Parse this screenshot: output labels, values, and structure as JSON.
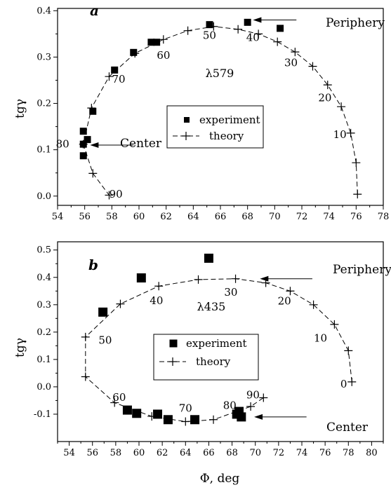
{
  "figure": {
    "xlabel": "Φ, deg"
  },
  "chart_data": [
    {
      "type": "scatter",
      "panel": "a",
      "ylabel": "tgγ",
      "wavelength_label": "λ579",
      "xlim": [
        54,
        78
      ],
      "ylim": [
        -0.02,
        0.405
      ],
      "x_ticks": [
        54,
        56,
        58,
        60,
        62,
        64,
        66,
        68,
        70,
        72,
        74,
        76,
        78
      ],
      "y_ticks": [
        {
          "v": 0.0,
          "label": "0.0"
        },
        {
          "v": 0.1,
          "label": "0.1"
        },
        {
          "v": 0.2,
          "label": "0.2"
        },
        {
          "v": 0.3,
          "label": "0.3"
        },
        {
          "v": 0.4,
          "label": "0.4"
        }
      ],
      "legend": {
        "experiment": "experiment",
        "theory": "theory"
      },
      "series": [
        {
          "name": "experiment",
          "style": "filled-square",
          "points": [
            [
              55.9,
              0.14
            ],
            [
              55.9,
              0.112
            ],
            [
              56.2,
              0.122
            ],
            [
              55.9,
              0.087
            ],
            [
              56.6,
              0.183
            ],
            [
              58.2,
              0.272
            ],
            [
              59.6,
              0.31
            ],
            [
              60.9,
              0.332
            ],
            [
              61.3,
              0.332
            ],
            [
              65.2,
              0.37
            ],
            [
              68.0,
              0.375
            ],
            [
              70.4,
              0.362
            ]
          ]
        },
        {
          "name": "theory",
          "style": "dashed-line-cross",
          "points": [
            [
              76.1,
              0.004
            ],
            [
              76.0,
              0.072
            ],
            [
              75.6,
              0.136
            ],
            [
              74.9,
              0.193
            ],
            [
              73.9,
              0.24
            ],
            [
              72.8,
              0.28
            ],
            [
              71.5,
              0.311
            ],
            [
              70.2,
              0.333
            ],
            [
              68.8,
              0.35
            ],
            [
              67.3,
              0.36
            ],
            [
              65.5,
              0.366
            ],
            [
              63.6,
              0.357
            ],
            [
              61.8,
              0.338
            ],
            [
              59.7,
              0.308
            ],
            [
              57.8,
              0.258
            ],
            [
              56.5,
              0.19
            ],
            [
              55.9,
              0.112
            ],
            [
              56.6,
              0.049
            ],
            [
              57.8,
              0.002
            ]
          ],
          "labels": [
            {
              "text": "90",
              "x": 58.3,
              "y": 0.004
            },
            {
              "text": "80",
              "x": 55.2,
              "y": 0.112
            },
            {
              "text": "70",
              "x": 58.4,
              "y": 0.252
            },
            {
              "text": "60",
              "x": 61.7,
              "y": 0.304
            },
            {
              "text": "50",
              "x": 65.4,
              "y": 0.347
            },
            {
              "text": "40",
              "x": 68.6,
              "y": 0.342
            },
            {
              "text": "30",
              "x": 71.2,
              "y": 0.288
            },
            {
              "text": "20",
              "x": 73.7,
              "y": 0.212
            },
            {
              "text": "10",
              "x": 74.8,
              "y": 0.133
            }
          ]
        }
      ],
      "annotations": [
        {
          "text": "Periphery",
          "from": [
            71.6,
            0.38
          ],
          "to": [
            68.4,
            0.38
          ]
        },
        {
          "text": "Center",
          "from": [
            59.6,
            0.11
          ],
          "to": [
            56.4,
            0.11
          ]
        }
      ]
    },
    {
      "type": "scatter",
      "panel": "b",
      "ylabel": "tgγ",
      "wavelength_label": "λ435",
      "xlim": [
        53,
        81
      ],
      "ylim": [
        -0.2,
        0.53
      ],
      "x_ticks": [
        54,
        56,
        58,
        60,
        62,
        64,
        66,
        68,
        70,
        72,
        74,
        76,
        78,
        80
      ],
      "y_ticks": [
        {
          "v": -0.1,
          "label": "-0.1"
        },
        {
          "v": 0.0,
          "label": "0.0"
        },
        {
          "v": 0.1,
          "label": "0.1"
        },
        {
          "v": 0.2,
          "label": "0.2"
        },
        {
          "v": 0.3,
          "label": "0.3"
        },
        {
          "v": 0.4,
          "label": "0.4"
        },
        {
          "v": 0.5,
          "label": "0.5"
        }
      ],
      "legend": {
        "experiment": "experiment",
        "theory": "theory"
      },
      "series": [
        {
          "name": "experiment",
          "style": "filled-square",
          "points": [
            [
              66.0,
              0.47
            ],
            [
              60.2,
              0.398
            ],
            [
              56.9,
              0.273
            ],
            [
              59.0,
              -0.085
            ],
            [
              59.8,
              -0.097
            ],
            [
              61.6,
              -0.1
            ],
            [
              62.5,
              -0.12
            ],
            [
              64.8,
              -0.12
            ],
            [
              68.4,
              -0.1
            ],
            [
              68.6,
              -0.09
            ],
            [
              68.8,
              -0.11
            ]
          ]
        },
        {
          "name": "theory",
          "style": "dashed-line-cross",
          "points": [
            [
              78.3,
              0.018
            ],
            [
              78.0,
              0.132
            ],
            [
              76.8,
              0.228
            ],
            [
              75.0,
              0.3
            ],
            [
              73.0,
              0.35
            ],
            [
              70.9,
              0.38
            ],
            [
              68.3,
              0.395
            ],
            [
              65.1,
              0.392
            ],
            [
              61.7,
              0.368
            ],
            [
              58.4,
              0.303
            ],
            [
              55.4,
              0.182
            ],
            [
              55.4,
              0.037
            ],
            [
              57.9,
              -0.058
            ],
            [
              61.1,
              -0.108
            ],
            [
              64.0,
              -0.127
            ],
            [
              66.4,
              -0.12
            ],
            [
              69.6,
              -0.072
            ],
            [
              70.7,
              -0.04
            ]
          ],
          "labels": [
            {
              "text": "0",
              "x": 77.6,
              "y": 0.01
            },
            {
              "text": "10",
              "x": 75.6,
              "y": 0.178
            },
            {
              "text": "20",
              "x": 72.5,
              "y": 0.313
            },
            {
              "text": "30",
              "x": 67.9,
              "y": 0.345
            },
            {
              "text": "40",
              "x": 61.5,
              "y": 0.315
            },
            {
              "text": "50",
              "x": 57.1,
              "y": 0.17
            },
            {
              "text": "60",
              "x": 58.3,
              "y": -0.039
            },
            {
              "text": "70",
              "x": 64.0,
              "y": -0.078
            },
            {
              "text": "80",
              "x": 67.8,
              "y": -0.068
            },
            {
              "text": "90",
              "x": 69.8,
              "y": -0.03
            }
          ]
        }
      ],
      "annotations": [
        {
          "text": "Periphery",
          "from": [
            74.9,
            0.395
          ],
          "to": [
            70.4,
            0.395
          ]
        },
        {
          "text": "Center",
          "from": [
            74.4,
            -0.11
          ],
          "to": [
            69.9,
            -0.11
          ]
        }
      ]
    }
  ]
}
